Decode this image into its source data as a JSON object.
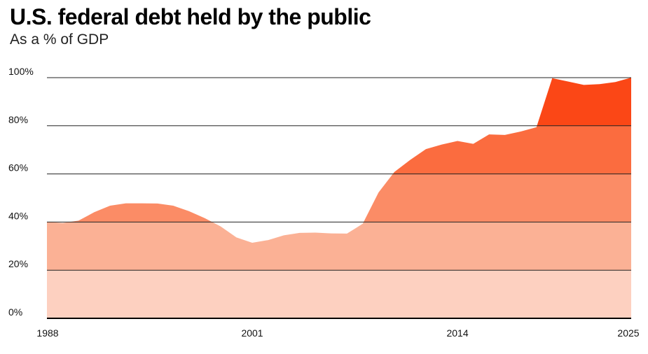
{
  "header": {
    "title": "U.S. federal debt held by the public",
    "subtitle": "As a % of GDP"
  },
  "chart_data": {
    "type": "area",
    "title": "U.S. federal debt held by the public",
    "subtitle": "As a % of GDP",
    "xlabel": "",
    "ylabel": "",
    "xlim": [
      1988,
      2025
    ],
    "ylim": [
      0,
      100
    ],
    "x_ticks": [
      1988,
      2001,
      2014,
      2025
    ],
    "x_tick_labels": [
      "1988",
      "2001",
      "2014",
      "2025"
    ],
    "y_ticks": [
      0,
      20,
      40,
      60,
      80,
      100
    ],
    "y_tick_labels": [
      "0%",
      "20%",
      "40%",
      "60%",
      "80%",
      "100%"
    ],
    "grid": true,
    "legend": "none",
    "band_colors": [
      "#fdd0c0",
      "#fbb195",
      "#fb8c66",
      "#fb6c3f",
      "#fb4716"
    ],
    "x": [
      1988,
      1989,
      1990,
      1991,
      1992,
      1993,
      1994,
      1995,
      1996,
      1997,
      1998,
      1999,
      2000,
      2001,
      2002,
      2003,
      2004,
      2005,
      2006,
      2007,
      2008,
      2009,
      2010,
      2011,
      2012,
      2013,
      2014,
      2015,
      2016,
      2017,
      2018,
      2019,
      2020,
      2021,
      2022,
      2023,
      2024,
      2025
    ],
    "values": [
      40.1,
      39.6,
      40.6,
      44.1,
      46.8,
      47.8,
      47.8,
      47.7,
      46.8,
      44.5,
      41.6,
      38.2,
      33.6,
      31.4,
      32.5,
      34.5,
      35.5,
      35.6,
      35.3,
      35.2,
      39.3,
      52.3,
      60.8,
      65.8,
      70.3,
      72.2,
      73.7,
      72.5,
      76.4,
      76.2,
      77.6,
      79.4,
      99.8,
      98.4,
      97.0,
      97.3,
      98.2,
      100.0
    ]
  }
}
